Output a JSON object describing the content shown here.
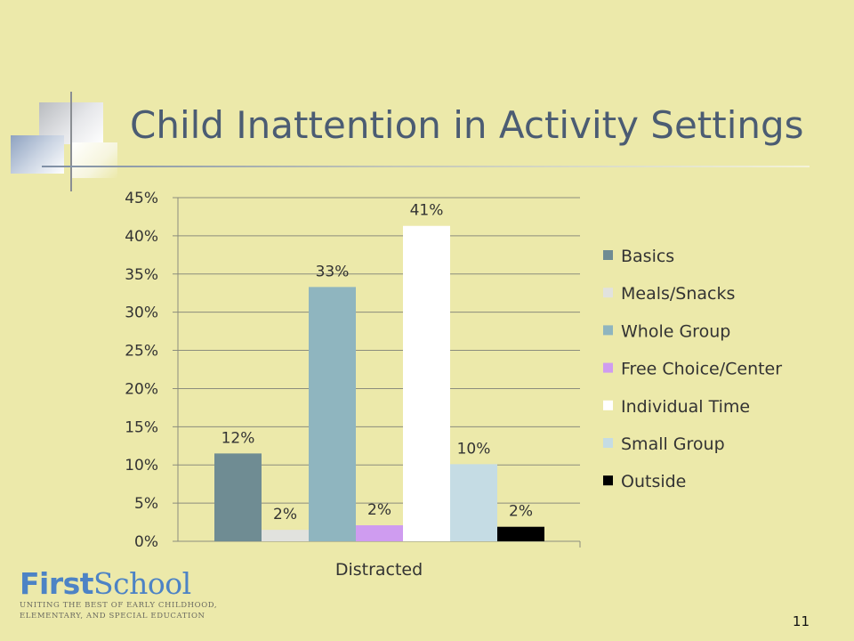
{
  "slide": {
    "title": "Child Inattention in Activity Settings",
    "page_number": "11"
  },
  "logo": {
    "first": "First",
    "school": "School",
    "tagline_line1": "UNITING THE BEST OF EARLY CHILDHOOD,",
    "tagline_line2": "ELEMENTARY, AND SPECIAL EDUCATION"
  },
  "chart_data": {
    "type": "bar",
    "categories": [
      "Distracted"
    ],
    "series": [
      {
        "name": "Basics",
        "values": [
          0.115
        ],
        "label": "12%",
        "color": "#6f8c93"
      },
      {
        "name": "Meals/Snacks",
        "values": [
          0.015
        ],
        "label": "2%",
        "color": "#e1e2de"
      },
      {
        "name": "Whole Group",
        "values": [
          0.333
        ],
        "label": "33%",
        "color": "#8fb5bf"
      },
      {
        "name": "Free Choice/Center",
        "values": [
          0.021
        ],
        "label": "2%",
        "color": "#cf9cf0"
      },
      {
        "name": "Individual Time",
        "values": [
          0.413
        ],
        "label": "41%",
        "color": "#ffffff"
      },
      {
        "name": "Small Group",
        "values": [
          0.101
        ],
        "label": "10%",
        "color": "#c5dce4"
      },
      {
        "name": "Outside",
        "values": [
          0.019
        ],
        "label": "2%",
        "color": "#000000"
      }
    ],
    "ylim": [
      0,
      0.45
    ],
    "yticks": [
      "0%",
      "5%",
      "10%",
      "15%",
      "20%",
      "25%",
      "30%",
      "35%",
      "40%",
      "45%"
    ],
    "grid": true,
    "legend": "right",
    "colors": {
      "background": "#ece9aa",
      "grid": "#8b8d7d",
      "text": "#333333",
      "title": "#4b5c73"
    }
  }
}
